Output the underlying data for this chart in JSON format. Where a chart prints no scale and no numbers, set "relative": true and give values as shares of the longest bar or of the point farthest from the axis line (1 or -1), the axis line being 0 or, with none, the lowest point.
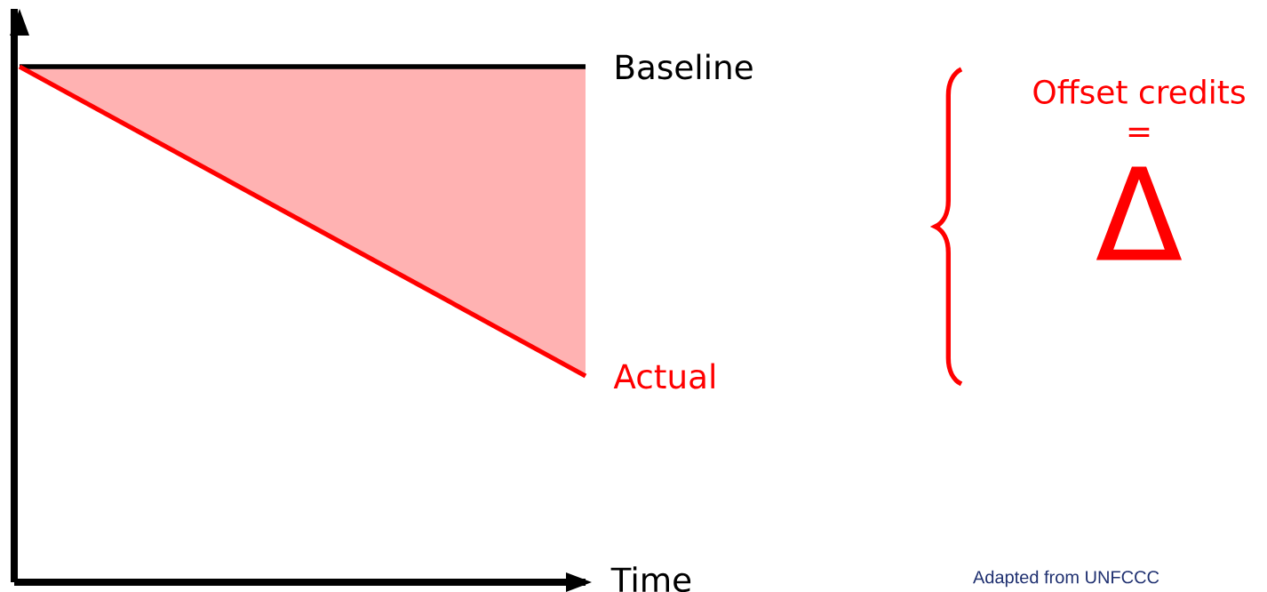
{
  "chart_data": {
    "type": "line",
    "relative": true,
    "xlabel": "Time",
    "categories": [
      null,
      null
    ],
    "series": [
      {
        "name": "Baseline",
        "color": "#000000",
        "values": [
          1,
          1
        ]
      },
      {
        "name": "Actual",
        "color": "#ff0000",
        "values": [
          1,
          0.4
        ],
        "lower": [
          1,
          0.4
        ],
        "upper": [
          1,
          1
        ]
      }
    ],
    "annotations": [
      "Offset credits",
      "=",
      "Δ",
      "Adapted from UNFCCC"
    ]
  }
}
